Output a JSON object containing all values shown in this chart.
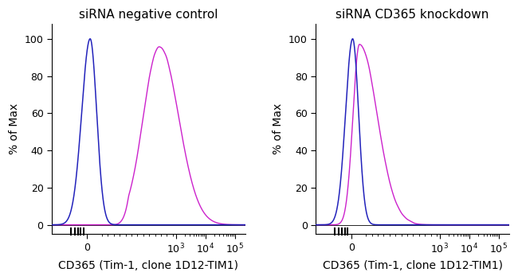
{
  "title_left": "siRNA negative control",
  "title_right": "siRNA CD365 knockdown",
  "xlabel": "CD365 (Tim-1, clone 1D12-TIM1)",
  "ylabel": "% of Max",
  "bg_color": "#f2f2f2",
  "plot_bg": "#ffffff",
  "blue_color": "#2222bb",
  "magenta_color": "#cc22cc",
  "ylim": [
    -5,
    108
  ],
  "figsize": [
    6.5,
    3.52
  ],
  "dpi": 100,
  "title_fontsize": 11,
  "axis_fontsize": 10,
  "tick_fontsize": 9
}
